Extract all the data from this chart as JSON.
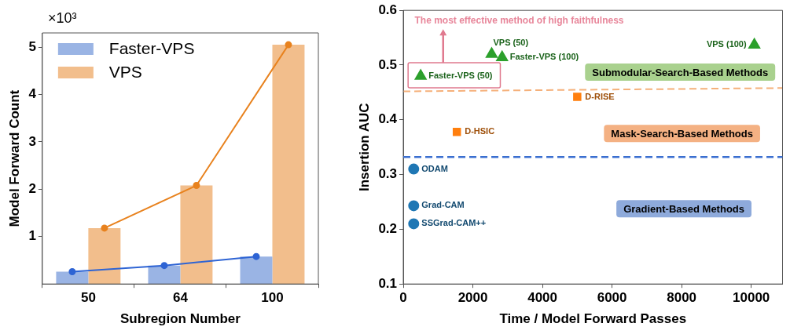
{
  "chart_data": [
    {
      "type": "bar",
      "xlabel": "Subregion Number",
      "ylabel": "Model Forward Count",
      "categories": [
        "50",
        "64",
        "100"
      ],
      "series": [
        {
          "name": "Faster-VPS",
          "type": "bar",
          "color": "#9ab4e4",
          "values": [
            0.26,
            0.39,
            0.58
          ]
        },
        {
          "name": "VPS",
          "type": "bar",
          "color": "#f2be8c",
          "values": [
            1.18,
            2.08,
            5.05
          ]
        },
        {
          "type": "line",
          "color": "#2e64d4",
          "values": [
            0.26,
            0.39,
            0.58
          ]
        },
        {
          "type": "line",
          "color": "#e8821e",
          "values": [
            1.18,
            2.08,
            5.05
          ]
        }
      ],
      "ylim": [
        0,
        5.3
      ],
      "yticks": [
        1,
        2,
        3,
        4,
        5
      ],
      "legend": "top left",
      "marker": "circle",
      "annotations": [
        "×10³"
      ]
    },
    {
      "type": "scatter",
      "xlabel": "Time / Model Forward Passes",
      "ylabel": "Insertion AUC",
      "xlim": [
        0,
        10900
      ],
      "xticks": [
        0,
        2000,
        4000,
        6000,
        8000,
        10000
      ],
      "ylim": [
        0.1,
        0.6
      ],
      "yticks": [
        0.1,
        0.2,
        0.3,
        0.4,
        0.5,
        0.6
      ],
      "series": [
        {
          "name": "Faster-VPS (50)",
          "color": "#2ca02c",
          "marker": "triangle",
          "x": [
            500
          ],
          "values": [
            0.48
          ]
        },
        {
          "name": "VPS (50)",
          "color": "#2ca02c",
          "marker": "triangle",
          "x": [
            2540
          ],
          "values": [
            0.52
          ]
        },
        {
          "name": "Faster-VPS (100)",
          "color": "#2ca02c",
          "marker": "triangle",
          "x": [
            2840
          ],
          "values": [
            0.514
          ]
        },
        {
          "name": "VPS (100)",
          "color": "#2ca02c",
          "marker": "triangle",
          "x": [
            10090
          ],
          "values": [
            0.537
          ]
        },
        {
          "name": "D-RISE",
          "color": "#ff7f0e",
          "marker": "square",
          "x": [
            5000
          ],
          "values": [
            0.442
          ]
        },
        {
          "name": "D-HSIC",
          "color": "#ff7f0e",
          "marker": "square",
          "x": [
            1540
          ],
          "values": [
            0.378
          ]
        },
        {
          "name": "ODAM",
          "color": "#1f77b4",
          "marker": "circle",
          "x": [
            300
          ],
          "values": [
            0.31
          ]
        },
        {
          "name": "Grad-CAM",
          "color": "#1f77b4",
          "marker": "circle",
          "x": [
            300
          ],
          "values": [
            0.243
          ]
        },
        {
          "name": "SSGrad-CAM++",
          "color": "#1f77b4",
          "marker": "circle",
          "x": [
            300
          ],
          "values": [
            0.21
          ]
        },
        {
          "type": "line",
          "color": "#f5b07a",
          "marker": "none",
          "line_style": "dashed",
          "x": [
            0,
            10900
          ],
          "values": [
            0.452,
            0.458
          ]
        }
      ],
      "ref_lines": [
        {
          "axis": "y",
          "value": 0.332,
          "color": "#3a6fd0",
          "line_style": "dashed"
        }
      ],
      "annotations": [
        "The most effective method of high faithfulness",
        "Submodular-Search-Based Methods",
        "Mask-Search-Based Methods",
        "Gradient-Based Methods"
      ]
    }
  ]
}
